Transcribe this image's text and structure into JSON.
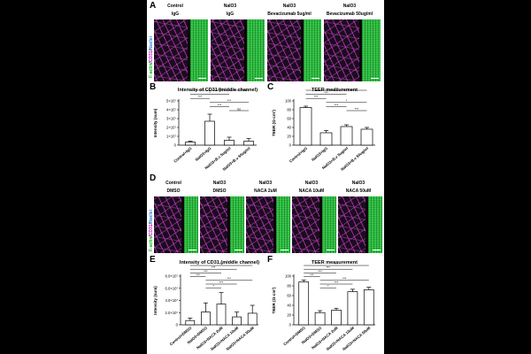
{
  "figure": {
    "panel_labels": [
      "A",
      "B",
      "C",
      "D",
      "E",
      "F"
    ],
    "side_label_top": [
      "F-actin",
      "/",
      "CD31",
      "/",
      "Nuclei"
    ],
    "side_label_bottom": [
      "F-actin",
      "/",
      "CD31",
      "/",
      "Nuclei"
    ],
    "colors": {
      "factin": "#18b018",
      "cd31": "#c01ac0",
      "nuclei": "#2a7fd0",
      "bar": "#ffffff",
      "axis": "#000000"
    }
  },
  "row_a": {
    "headers": [
      {
        "line1": "Control",
        "line2": "IgG"
      },
      {
        "line1": "NaIO3",
        "line2": "IgG"
      },
      {
        "line1": "NaIO3",
        "line2": "Bevacizumab 5ug/ml"
      },
      {
        "line1": "NaIO3",
        "line2": "Bevacizumab 50ug/ml"
      }
    ]
  },
  "row_d": {
    "headers": [
      {
        "line1": "Control",
        "line2": "DMSO"
      },
      {
        "line1": "NaIO3",
        "line2": "DMSO"
      },
      {
        "line1": "NaIO3",
        "line2": "NACA  2uM"
      },
      {
        "line1": "NaIO3",
        "line2": "NACA  10uM"
      },
      {
        "line1": "NaIO3",
        "line2": "NACA  50uM"
      }
    ]
  },
  "chart_data": [
    {
      "id": "B",
      "type": "bar",
      "title": "Intensity of CD31 (middle channel)",
      "ylabel": "Intensity (sum)",
      "ylim": [
        0,
        5
      ],
      "yticks": [
        0,
        1,
        2,
        3,
        4,
        5
      ],
      "ytick_labels": [
        "0",
        "1×10⁷",
        "2×10⁷",
        "3×10⁷",
        "4×10⁷",
        "5×10⁷"
      ],
      "categories": [
        "Control+IgG",
        "NaIO3+IgG",
        "NaIO3+B.v 5ug/ml",
        "NaIO3+B.v 50ug/ml"
      ],
      "values": [
        0.35,
        2.7,
        0.55,
        0.45
      ],
      "errors": [
        0.1,
        0.8,
        0.35,
        0.3
      ],
      "sig": [
        {
          "from": 0,
          "to": 3,
          "label": "ns"
        },
        {
          "from": 0,
          "to": 2,
          "label": "*"
        },
        {
          "from": 0,
          "to": 1,
          "label": "***"
        },
        {
          "from": 1,
          "to": 3,
          "label": "***"
        },
        {
          "from": 1,
          "to": 2,
          "label": "***"
        },
        {
          "from": 2,
          "to": 3,
          "label": "ns"
        }
      ]
    },
    {
      "id": "C",
      "type": "bar",
      "title": "TEER measurement",
      "ylabel": "TEER (Ω·cm²)",
      "ylim": [
        0,
        100
      ],
      "yticks": [
        0,
        20,
        40,
        60,
        80,
        100
      ],
      "ytick_labels": [
        "0",
        "20",
        "40",
        "60",
        "80",
        "100"
      ],
      "categories": [
        "Control+IgG",
        "NaIO3+IgG",
        "NaIO3+B.v 5ug/ml",
        "NaIO3+B.v 50ug/ml"
      ],
      "values": [
        85,
        28,
        42,
        36
      ],
      "errors": [
        3,
        5,
        4,
        4
      ],
      "sig": [
        {
          "from": 0,
          "to": 3,
          "label": "***"
        },
        {
          "from": 0,
          "to": 2,
          "label": "***"
        },
        {
          "from": 0,
          "to": 1,
          "label": "***"
        },
        {
          "from": 1,
          "to": 3,
          "label": "*"
        },
        {
          "from": 1,
          "to": 2,
          "label": "***"
        },
        {
          "from": 2,
          "to": 3,
          "label": "***"
        }
      ]
    },
    {
      "id": "E",
      "type": "bar",
      "title": "Intensity of CD31 (middle channel)",
      "ylabel": "Intensity (sum)",
      "ylim": [
        0,
        8
      ],
      "yticks": [
        0,
        2,
        4,
        6,
        8
      ],
      "ytick_labels": [
        "0",
        "2.0×10⁷",
        "4.0×10⁷",
        "6.0×10⁷",
        "8.0×10⁷"
      ],
      "categories": [
        "Control+DMSO",
        "NaIO3+DMSO",
        "NaIO3+NACA 2uM",
        "NaIO3+NACA 10uM",
        "NaIO3+NACA 50uM"
      ],
      "values": [
        0.7,
        2.1,
        3.4,
        1.3,
        1.9
      ],
      "errors": [
        0.4,
        1.5,
        1.9,
        0.8,
        1.3
      ],
      "sig": [
        {
          "from": 0,
          "to": 4,
          "label": "***"
        },
        {
          "from": 0,
          "to": 3,
          "label": "***"
        },
        {
          "from": 0,
          "to": 2,
          "label": "***"
        },
        {
          "from": 0,
          "to": 1,
          "label": "***"
        },
        {
          "from": 1,
          "to": 4,
          "label": "***"
        },
        {
          "from": 1,
          "to": 3,
          "label": "***"
        },
        {
          "from": 1,
          "to": 2,
          "label": "*"
        }
      ]
    },
    {
      "id": "F",
      "type": "bar",
      "title": "TEER measurement",
      "ylabel": "TEER (Ω·cm²)",
      "ylim": [
        0,
        100
      ],
      "yticks": [
        0,
        20,
        40,
        60,
        80,
        100
      ],
      "ytick_labels": [
        "0",
        "20",
        "40",
        "60",
        "80",
        "100"
      ],
      "categories": [
        "Control+DMSO",
        "NaIO3+DMSO",
        "NaIO3+NACA 2uM",
        "NaIO3+NACA 10uM",
        "NaIO3+NACA 50uM"
      ],
      "values": [
        88,
        25,
        30,
        68,
        72
      ],
      "errors": [
        4,
        4,
        4,
        5,
        5
      ],
      "sig": [
        {
          "from": 0,
          "to": 4,
          "label": "***"
        },
        {
          "from": 0,
          "to": 3,
          "label": "***"
        },
        {
          "from": 0,
          "to": 2,
          "label": "***"
        },
        {
          "from": 0,
          "to": 1,
          "label": "***"
        },
        {
          "from": 1,
          "to": 4,
          "label": "***"
        },
        {
          "from": 1,
          "to": 3,
          "label": "***"
        },
        {
          "from": 1,
          "to": 2,
          "label": "*"
        }
      ]
    }
  ]
}
